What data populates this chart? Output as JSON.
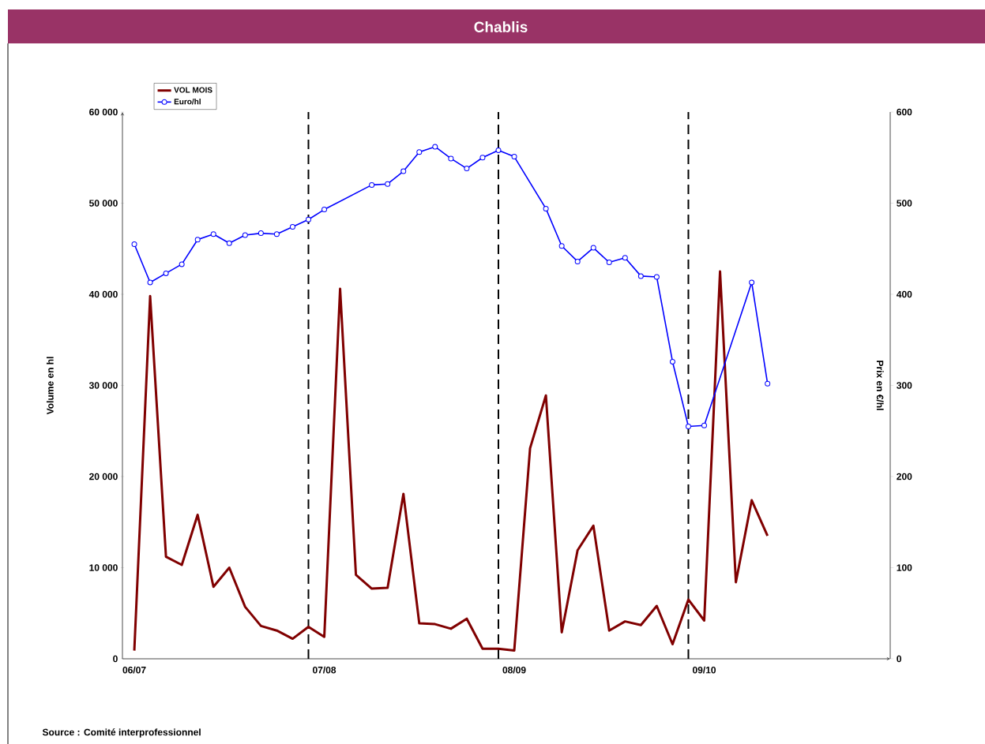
{
  "chart_data": {
    "type": "line",
    "title": "Chablis",
    "ylabel": "Volume en hl",
    "y2label": "Prix en €/hl",
    "categories": [
      "06/07",
      null,
      null,
      null,
      null,
      null,
      null,
      null,
      null,
      null,
      null,
      null,
      "07/08",
      null,
      null,
      null,
      null,
      null,
      null,
      null,
      null,
      null,
      null,
      null,
      "08/09",
      null,
      null,
      null,
      null,
      null,
      null,
      null,
      null,
      null,
      null,
      null,
      "09/10",
      null,
      null,
      null,
      null,
      null,
      null,
      null,
      null,
      null,
      null,
      null
    ],
    "ylim": [
      0,
      60000
    ],
    "yticks": [
      {
        "value": 0,
        "label": "0"
      },
      {
        "value": 10000,
        "label": "10 000"
      },
      {
        "value": 20000,
        "label": "20 000"
      },
      {
        "value": 30000,
        "label": "30 000"
      },
      {
        "value": 40000,
        "label": "40 000"
      },
      {
        "value": 50000,
        "label": "50 000"
      },
      {
        "value": 60000,
        "label": "60 000"
      }
    ],
    "y2lim": [
      0,
      600
    ],
    "y2ticks": [
      0,
      100,
      200,
      300,
      400,
      500,
      600
    ],
    "series": [
      {
        "name": "VOL MOIS",
        "color": "#800000",
        "marker": "none",
        "values": [
          900,
          39800,
          11200,
          10300,
          15800,
          7900,
          10000,
          5700,
          3600,
          3100,
          2200,
          3500,
          2400,
          40600,
          9200,
          7700,
          7800,
          18100,
          3900,
          3800,
          3300,
          4400,
          1100,
          1100,
          900,
          23100,
          28900,
          2900,
          11900,
          14600,
          3100,
          4100,
          3700,
          5800,
          1600,
          6500,
          4200,
          42500,
          8400,
          17400,
          13500,
          null,
          null,
          null,
          null,
          null,
          null,
          null
        ]
      },
      {
        "name": "Euro/hl",
        "color": "#0000ff",
        "marker": "circle",
        "axis": "y2",
        "values": [
          455,
          413,
          423,
          433,
          460,
          466,
          456,
          465,
          467,
          466,
          474,
          482,
          493,
          null,
          null,
          520,
          521,
          535,
          556,
          562,
          549,
          538,
          550,
          558,
          551,
          null,
          494,
          453,
          436,
          451,
          435,
          440,
          420,
          419,
          326,
          255,
          256,
          null,
          null,
          413,
          302,
          null,
          null,
          null,
          null,
          null,
          null,
          null
        ]
      }
    ],
    "grid": "x",
    "legend": "top left",
    "annotations": [
      "Source : Comité interprofessionnel"
    ]
  }
}
